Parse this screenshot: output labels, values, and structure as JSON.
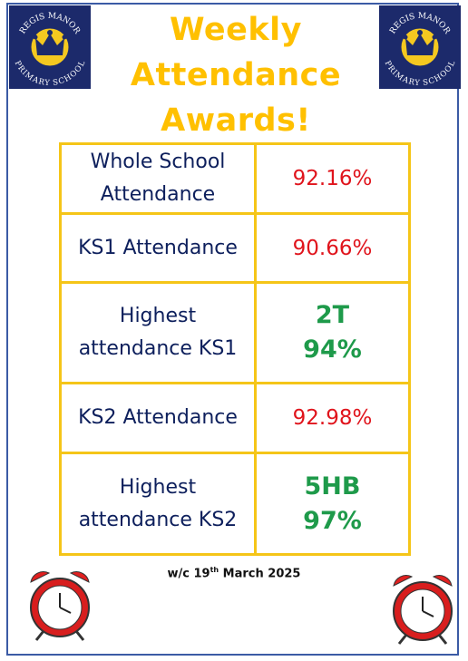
{
  "logo": {
    "top_text": "REGIS MANOR",
    "bottom_text": "PRIMARY SCHOOL"
  },
  "title_lines": [
    "Weekly",
    "Attendance",
    "Awards!"
  ],
  "table": {
    "rows": [
      {
        "label": "Whole School Attendance",
        "value": [
          "92.16%"
        ]
      },
      {
        "label": "KS1 Attendance",
        "value": [
          "90.66%"
        ]
      },
      {
        "label": "Highest attendance KS1",
        "value": [
          "2T",
          "94%"
        ]
      },
      {
        "label": "KS2 Attendance",
        "value": [
          "92.98%"
        ]
      },
      {
        "label": "Highest attendance KS2",
        "value": [
          "5HB",
          "97%"
        ]
      }
    ]
  },
  "footer": {
    "prefix": "w/c 19",
    "sup": "th",
    "suffix": " March 2025"
  }
}
